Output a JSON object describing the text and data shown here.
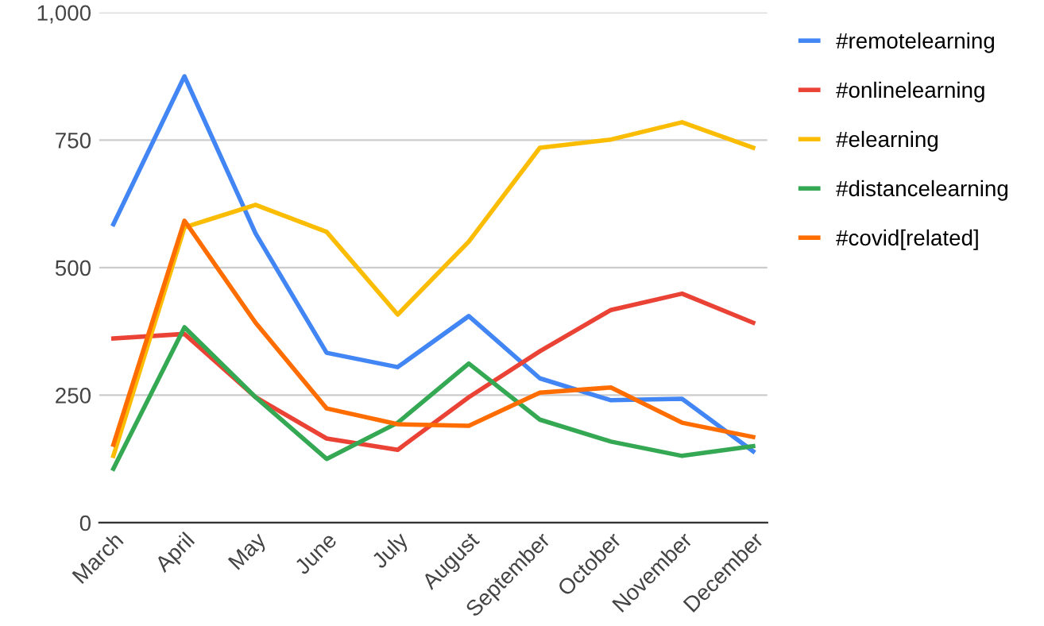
{
  "chart_data": {
    "type": "line",
    "categories": [
      "March",
      "April",
      "May",
      "June",
      "July",
      "August",
      "September",
      "October",
      "November",
      "December"
    ],
    "series": [
      {
        "name": "#remotelearning",
        "color": "#4285f4",
        "values": [
          585,
          875,
          567,
          333,
          305,
          405,
          283,
          240,
          243,
          140
        ]
      },
      {
        "name": "#onlinelearning",
        "color": "#ea4335",
        "values": [
          361,
          370,
          246,
          165,
          143,
          246,
          336,
          417,
          449,
          392
        ]
      },
      {
        "name": "#elearning",
        "color": "#fbbc04",
        "values": [
          131,
          579,
          623,
          570,
          408,
          551,
          735,
          751,
          785,
          735
        ]
      },
      {
        "name": "#distancelearning",
        "color": "#34a853",
        "values": [
          106,
          383,
          246,
          125,
          196,
          312,
          202,
          159,
          131,
          150
        ]
      },
      {
        "name": "#covid[related]",
        "color": "#ff6d01",
        "values": [
          153,
          592,
          392,
          224,
          193,
          190,
          255,
          265,
          196,
          168
        ]
      }
    ],
    "ylim": [
      0,
      1000
    ],
    "yticks": [
      0,
      250,
      500,
      750,
      {
        "value": 1000,
        "label": "1,000"
      }
    ],
    "grid": "y",
    "legend": "right",
    "marker": "none",
    "line_style": "solid"
  }
}
